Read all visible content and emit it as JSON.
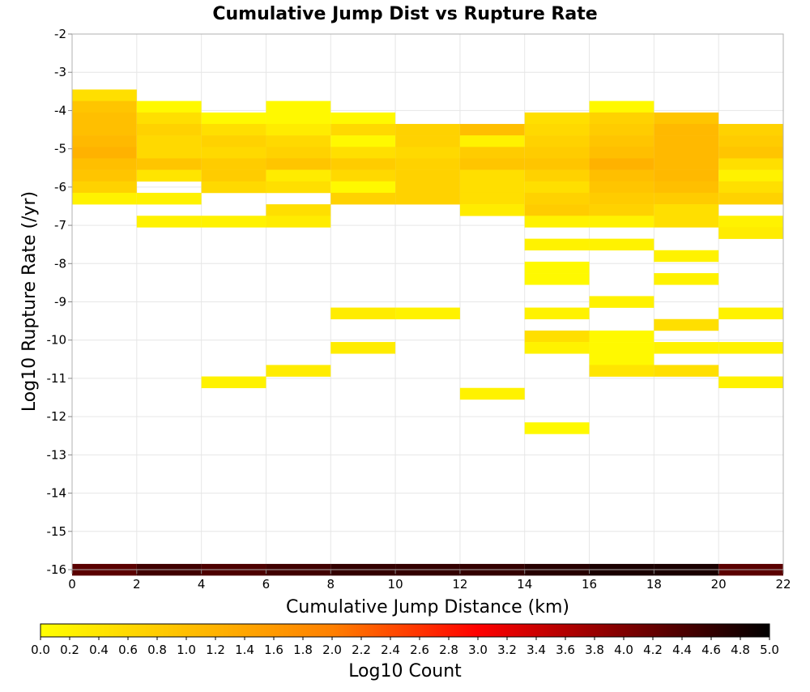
{
  "chart_data": {
    "type": "heatmap",
    "title": "Cumulative Jump Dist vs Rupture Rate",
    "xlabel": "Cumulative Jump Distance (km)",
    "ylabel": "Log10 Rupture Rate (/yr)",
    "xlim": [
      0,
      22
    ],
    "ylim": [
      -16,
      -2
    ],
    "x_ticks": [
      "0",
      "2",
      "4",
      "6",
      "8",
      "10",
      "12",
      "14",
      "16",
      "18",
      "20",
      "22"
    ],
    "y_ticks": [
      "-2",
      "-3",
      "-4",
      "-5",
      "-6",
      "-7",
      "-8",
      "-9",
      "-10",
      "-11",
      "-12",
      "-13",
      "-14",
      "-15",
      "-16"
    ],
    "bin_width_x": 2,
    "bin_height_y": 0.3,
    "grid": true,
    "colorbar": {
      "label": "Log10 Count",
      "range": [
        0.0,
        5.0
      ],
      "tick_labels": [
        "0.0",
        "0.2",
        "0.4",
        "0.6",
        "0.8",
        "1.0",
        "1.2",
        "1.4",
        "1.6",
        "1.8",
        "2.0",
        "2.2",
        "2.4",
        "2.6",
        "2.8",
        "3.0",
        "3.2",
        "3.4",
        "3.6",
        "3.8",
        "4.0",
        "4.2",
        "4.4",
        "4.6",
        "4.8",
        "5.0"
      ],
      "colors": [
        "#ffff00",
        "#ffbf00",
        "#ff8000",
        "#ff0000",
        "#800000",
        "#000000"
      ],
      "placement": "bottom"
    },
    "cells": [
      {
        "x": 0,
        "y": -3.6,
        "v": 0.5
      },
      {
        "x": 0,
        "y": -3.9,
        "v": 0.9
      },
      {
        "x": 0,
        "y": -4.2,
        "v": 1.0
      },
      {
        "x": 0,
        "y": -4.5,
        "v": 1.0
      },
      {
        "x": 0,
        "y": -4.8,
        "v": 1.1
      },
      {
        "x": 0,
        "y": -5.1,
        "v": 1.2
      },
      {
        "x": 0,
        "y": -5.4,
        "v": 1.0
      },
      {
        "x": 0,
        "y": -5.7,
        "v": 0.9
      },
      {
        "x": 0,
        "y": -6.0,
        "v": 0.7
      },
      {
        "x": 0,
        "y": -6.3,
        "v": 0.2
      },
      {
        "x": 2,
        "y": -3.9,
        "v": 0.1
      },
      {
        "x": 2,
        "y": -4.2,
        "v": 0.5
      },
      {
        "x": 2,
        "y": -4.5,
        "v": 0.7
      },
      {
        "x": 2,
        "y": -4.8,
        "v": 0.6
      },
      {
        "x": 2,
        "y": -5.1,
        "v": 0.6
      },
      {
        "x": 2,
        "y": -5.4,
        "v": 0.9
      },
      {
        "x": 2,
        "y": -5.7,
        "v": 0.4
      },
      {
        "x": 2,
        "y": -6.3,
        "v": 0.2
      },
      {
        "x": 2,
        "y": -6.9,
        "v": 0.2
      },
      {
        "x": 4,
        "y": -4.2,
        "v": 0.1
      },
      {
        "x": 4,
        "y": -4.5,
        "v": 0.5
      },
      {
        "x": 4,
        "y": -4.8,
        "v": 0.7
      },
      {
        "x": 4,
        "y": -5.1,
        "v": 0.6
      },
      {
        "x": 4,
        "y": -5.4,
        "v": 0.8
      },
      {
        "x": 4,
        "y": -5.7,
        "v": 0.8
      },
      {
        "x": 4,
        "y": -6.0,
        "v": 0.6
      },
      {
        "x": 4,
        "y": -6.9,
        "v": 0.2
      },
      {
        "x": 6,
        "y": -3.9,
        "v": 0.1
      },
      {
        "x": 6,
        "y": -4.2,
        "v": 0.1
      },
      {
        "x": 6,
        "y": -4.5,
        "v": 0.3
      },
      {
        "x": 6,
        "y": -4.8,
        "v": 0.6
      },
      {
        "x": 6,
        "y": -5.1,
        "v": 0.7
      },
      {
        "x": 6,
        "y": -5.4,
        "v": 0.9
      },
      {
        "x": 6,
        "y": -5.7,
        "v": 0.3
      },
      {
        "x": 6,
        "y": -6.0,
        "v": 0.5
      },
      {
        "x": 6,
        "y": -6.6,
        "v": 0.5
      },
      {
        "x": 6,
        "y": -6.9,
        "v": 0.3
      },
      {
        "x": 8,
        "y": -4.2,
        "v": 0.1
      },
      {
        "x": 8,
        "y": -4.5,
        "v": 0.6
      },
      {
        "x": 8,
        "y": -4.8,
        "v": 0.1
      },
      {
        "x": 8,
        "y": -5.1,
        "v": 0.5
      },
      {
        "x": 8,
        "y": -5.4,
        "v": 0.8
      },
      {
        "x": 8,
        "y": -5.7,
        "v": 0.6
      },
      {
        "x": 8,
        "y": -6.0,
        "v": 0.1
      },
      {
        "x": 8,
        "y": -6.3,
        "v": 0.7
      },
      {
        "x": 10,
        "y": -4.5,
        "v": 0.7
      },
      {
        "x": 10,
        "y": -4.8,
        "v": 0.7
      },
      {
        "x": 10,
        "y": -5.1,
        "v": 0.6
      },
      {
        "x": 10,
        "y": -5.4,
        "v": 0.7
      },
      {
        "x": 10,
        "y": -5.7,
        "v": 0.7
      },
      {
        "x": 10,
        "y": -6.0,
        "v": 0.7
      },
      {
        "x": 10,
        "y": -6.3,
        "v": 0.7
      },
      {
        "x": 12,
        "y": -4.5,
        "v": 1.0
      },
      {
        "x": 12,
        "y": -4.8,
        "v": 0.2
      },
      {
        "x": 12,
        "y": -5.1,
        "v": 0.8
      },
      {
        "x": 12,
        "y": -5.4,
        "v": 0.9
      },
      {
        "x": 12,
        "y": -5.7,
        "v": 0.5
      },
      {
        "x": 12,
        "y": -6.0,
        "v": 0.5
      },
      {
        "x": 12,
        "y": -6.3,
        "v": 0.5
      },
      {
        "x": 12,
        "y": -6.6,
        "v": 0.3
      },
      {
        "x": 14,
        "y": -4.2,
        "v": 0.5
      },
      {
        "x": 14,
        "y": -4.5,
        "v": 0.6
      },
      {
        "x": 14,
        "y": -4.8,
        "v": 0.7
      },
      {
        "x": 14,
        "y": -5.1,
        "v": 0.8
      },
      {
        "x": 14,
        "y": -5.4,
        "v": 0.9
      },
      {
        "x": 14,
        "y": -5.7,
        "v": 0.7
      },
      {
        "x": 14,
        "y": -6.0,
        "v": 0.5
      },
      {
        "x": 14,
        "y": -6.3,
        "v": 0.7
      },
      {
        "x": 14,
        "y": -6.6,
        "v": 0.8
      },
      {
        "x": 14,
        "y": -6.9,
        "v": 0.2
      },
      {
        "x": 14,
        "y": -7.5,
        "v": 0.2
      },
      {
        "x": 14,
        "y": -8.1,
        "v": 0.1
      },
      {
        "x": 14,
        "y": -8.4,
        "v": 0.1
      },
      {
        "x": 16,
        "y": -3.9,
        "v": 0.1
      },
      {
        "x": 16,
        "y": -4.2,
        "v": 0.7
      },
      {
        "x": 16,
        "y": -4.5,
        "v": 0.8
      },
      {
        "x": 16,
        "y": -4.8,
        "v": 0.9
      },
      {
        "x": 16,
        "y": -5.1,
        "v": 1.0
      },
      {
        "x": 16,
        "y": -5.4,
        "v": 1.2
      },
      {
        "x": 16,
        "y": -5.7,
        "v": 1.0
      },
      {
        "x": 16,
        "y": -6.0,
        "v": 0.9
      },
      {
        "x": 16,
        "y": -6.3,
        "v": 0.8
      },
      {
        "x": 16,
        "y": -6.6,
        "v": 0.7
      },
      {
        "x": 16,
        "y": -6.9,
        "v": 0.2
      },
      {
        "x": 16,
        "y": -7.5,
        "v": 0.2
      },
      {
        "x": 18,
        "y": -4.2,
        "v": 0.9
      },
      {
        "x": 18,
        "y": -4.5,
        "v": 1.1
      },
      {
        "x": 18,
        "y": -4.8,
        "v": 1.1
      },
      {
        "x": 18,
        "y": -5.1,
        "v": 1.1
      },
      {
        "x": 18,
        "y": -5.4,
        "v": 1.1
      },
      {
        "x": 18,
        "y": -5.7,
        "v": 1.1
      },
      {
        "x": 18,
        "y": -6.0,
        "v": 1.0
      },
      {
        "x": 18,
        "y": -6.3,
        "v": 0.8
      },
      {
        "x": 18,
        "y": -6.6,
        "v": 0.5
      },
      {
        "x": 18,
        "y": -6.9,
        "v": 0.5
      },
      {
        "x": 18,
        "y": -7.8,
        "v": 0.2
      },
      {
        "x": 18,
        "y": -8.4,
        "v": 0.2
      },
      {
        "x": 20,
        "y": -4.5,
        "v": 0.7
      },
      {
        "x": 20,
        "y": -4.8,
        "v": 0.8
      },
      {
        "x": 20,
        "y": -5.1,
        "v": 0.9
      },
      {
        "x": 20,
        "y": -5.4,
        "v": 0.5
      },
      {
        "x": 20,
        "y": -5.7,
        "v": 0.2
      },
      {
        "x": 20,
        "y": -6.0,
        "v": 0.5
      },
      {
        "x": 20,
        "y": -6.3,
        "v": 0.7
      },
      {
        "x": 20,
        "y": -6.9,
        "v": 0.2
      },
      {
        "x": 20,
        "y": -7.2,
        "v": 0.3
      },
      {
        "x": 14,
        "y": -9.3,
        "v": 0.2
      },
      {
        "x": 14,
        "y": -9.9,
        "v": 0.5
      },
      {
        "x": 14,
        "y": -10.2,
        "v": 0.2
      },
      {
        "x": 14,
        "y": -12.3,
        "v": 0.1
      },
      {
        "x": 16,
        "y": -9.0,
        "v": 0.2
      },
      {
        "x": 16,
        "y": -9.9,
        "v": 0.1
      },
      {
        "x": 16,
        "y": -10.2,
        "v": 0.1
      },
      {
        "x": 16,
        "y": -10.5,
        "v": 0.1
      },
      {
        "x": 16,
        "y": -10.8,
        "v": 0.4
      },
      {
        "x": 18,
        "y": -9.6,
        "v": 0.5
      },
      {
        "x": 18,
        "y": -10.2,
        "v": 0.2
      },
      {
        "x": 18,
        "y": -10.8,
        "v": 0.5
      },
      {
        "x": 20,
        "y": -9.3,
        "v": 0.2
      },
      {
        "x": 20,
        "y": -10.2,
        "v": 0.2
      },
      {
        "x": 20,
        "y": -11.1,
        "v": 0.2
      },
      {
        "x": 8,
        "y": -9.3,
        "v": 0.3
      },
      {
        "x": 8,
        "y": -10.2,
        "v": 0.3
      },
      {
        "x": 10,
        "y": -9.3,
        "v": 0.2
      },
      {
        "x": 4,
        "y": -11.1,
        "v": 0.2
      },
      {
        "x": 6,
        "y": -10.8,
        "v": 0.3
      },
      {
        "x": 12,
        "y": -11.4,
        "v": 0.2
      },
      {
        "x": 0,
        "y": -16.0,
        "v": 4.3
      },
      {
        "x": 2,
        "y": -16.0,
        "v": 4.5
      },
      {
        "x": 4,
        "y": -16.0,
        "v": 4.4
      },
      {
        "x": 6,
        "y": -16.0,
        "v": 4.5
      },
      {
        "x": 8,
        "y": -16.0,
        "v": 4.6
      },
      {
        "x": 10,
        "y": -16.0,
        "v": 4.6
      },
      {
        "x": 12,
        "y": -16.0,
        "v": 4.6
      },
      {
        "x": 14,
        "y": -16.0,
        "v": 4.7
      },
      {
        "x": 16,
        "y": -16.0,
        "v": 4.8
      },
      {
        "x": 18,
        "y": -16.0,
        "v": 4.8
      },
      {
        "x": 20,
        "y": -16.0,
        "v": 4.3
      }
    ]
  }
}
